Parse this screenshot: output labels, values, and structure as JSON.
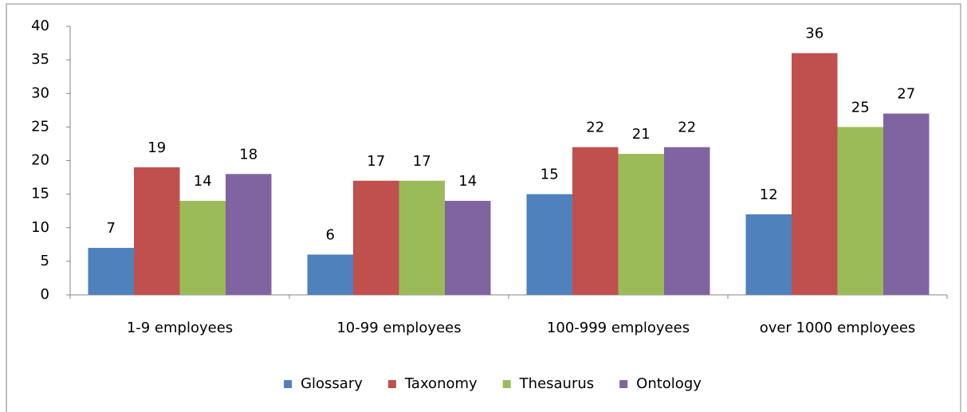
{
  "chart_data": {
    "type": "bar",
    "categories": [
      "1-9 employees",
      "10-99 employees",
      "100-999 employees",
      "over 1000 employees"
    ],
    "series": [
      {
        "name": "Glossary",
        "color": "#4f81bd",
        "values": [
          7,
          6,
          15,
          12
        ]
      },
      {
        "name": "Taxonomy",
        "color": "#c0504d",
        "values": [
          19,
          17,
          22,
          36
        ]
      },
      {
        "name": "Thesaurus",
        "color": "#9bbb59",
        "values": [
          14,
          17,
          21,
          25
        ]
      },
      {
        "name": "Ontology",
        "color": "#8064a2",
        "values": [
          18,
          14,
          22,
          27
        ]
      }
    ],
    "ylim": [
      0,
      40
    ],
    "yticks": [
      0,
      5,
      10,
      15,
      20,
      25,
      30,
      35,
      40
    ],
    "grid": false,
    "legend": "bottom"
  }
}
